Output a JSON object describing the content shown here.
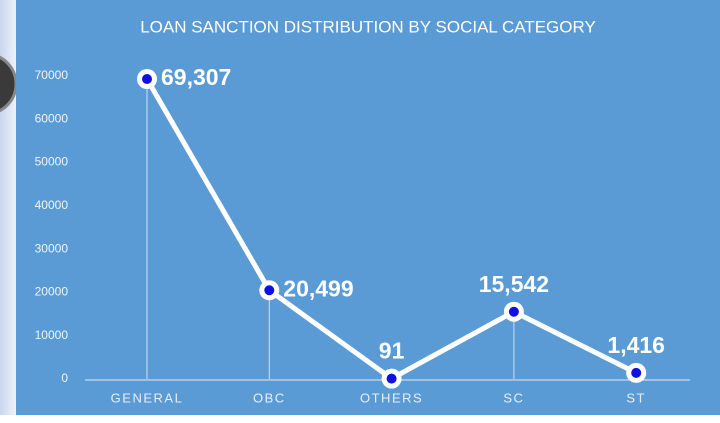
{
  "chart_data": {
    "type": "line",
    "title": "LOAN SANCTION DISTRIBUTION BY SOCIAL CATEGORY",
    "categories": [
      "GENERAL",
      "OBC",
      "OTHERS",
      "SC",
      "ST"
    ],
    "values": [
      69307,
      20499,
      91,
      15542,
      1416
    ],
    "value_labels": [
      "69,307",
      "20,499",
      "91",
      "15,542",
      "1,416"
    ],
    "color": "#ffffff",
    "ylim": [
      0,
      70000
    ],
    "yticks": [
      0,
      10000,
      20000,
      30000,
      40000,
      50000,
      60000,
      70000
    ],
    "grid": false
  }
}
